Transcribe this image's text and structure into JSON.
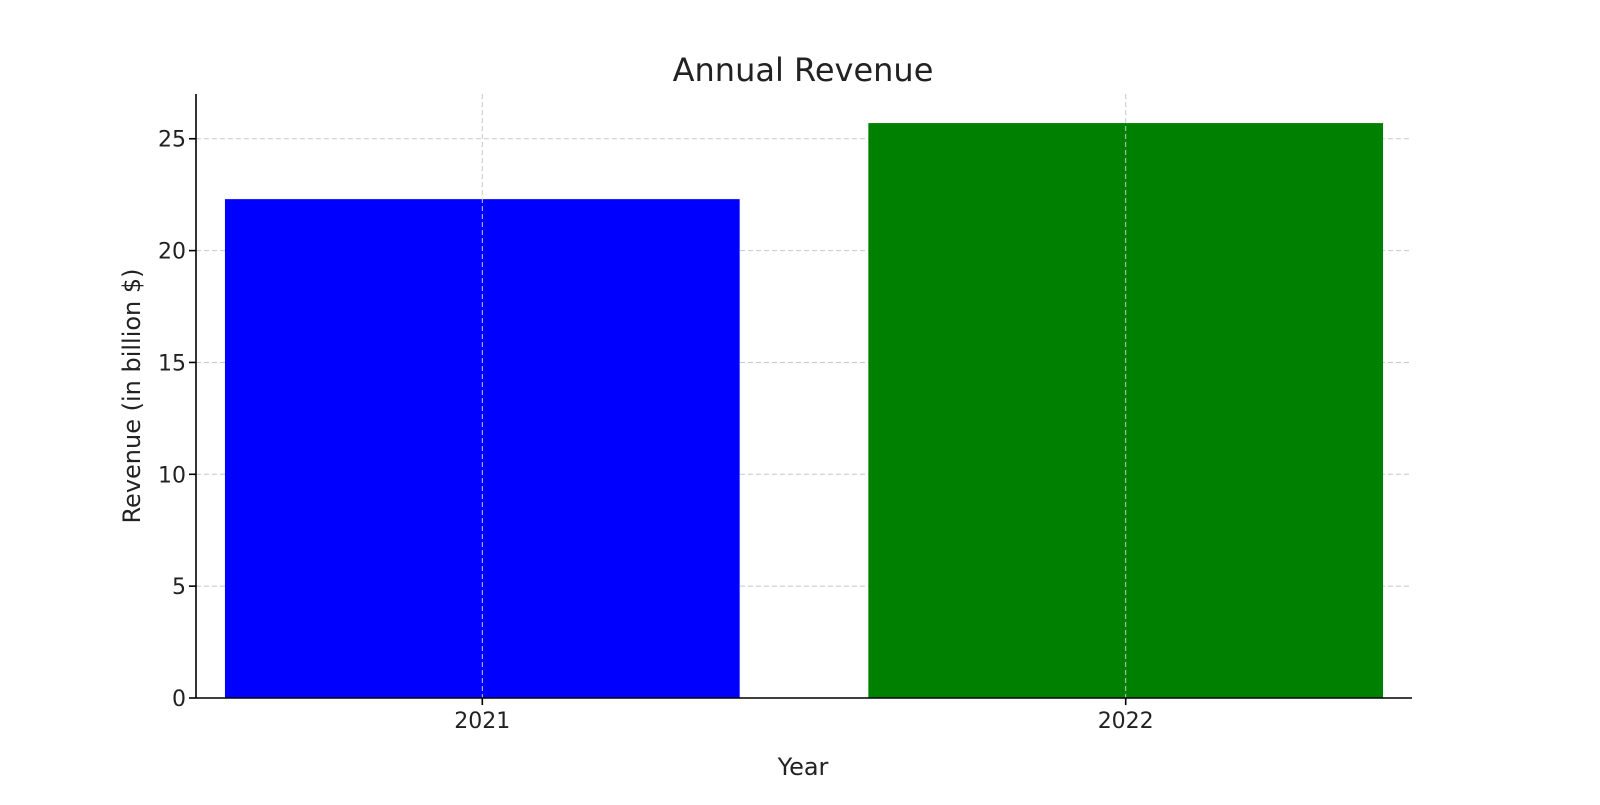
{
  "chart_data": {
    "type": "bar",
    "title": "Annual Revenue",
    "xlabel": "Year",
    "ylabel": "Revenue (in billion $)",
    "categories": [
      "2021",
      "2022"
    ],
    "values": [
      22.3,
      25.7
    ],
    "colors": [
      "#0000ff",
      "#008000"
    ],
    "ylim": [
      0,
      27
    ],
    "yticks": [
      0,
      5,
      10,
      15,
      20,
      25
    ],
    "ytick_labels": [
      "0",
      "5",
      "10",
      "15",
      "20",
      "25"
    ],
    "grid": true
  }
}
